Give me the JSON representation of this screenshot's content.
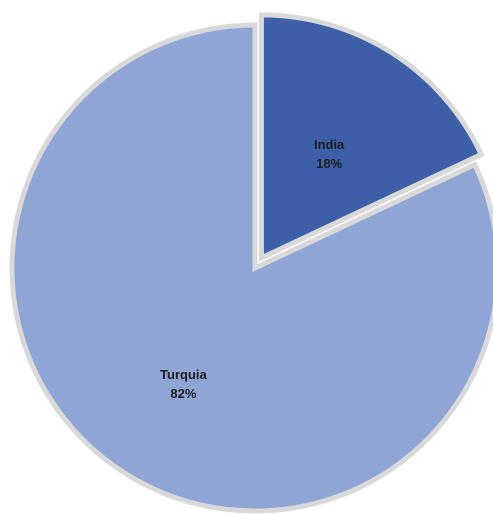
{
  "chart_data": {
    "type": "pie",
    "title": "",
    "slices": [
      {
        "name": "India",
        "value": 18,
        "label": "18%",
        "color": "#3c5fa8",
        "exploded": true
      },
      {
        "name": "Turquia",
        "value": 82,
        "label": "82%",
        "color": "#8ea5d6",
        "exploded": false
      }
    ],
    "start_angle": "top (12 o'clock), clockwise",
    "legend": "none",
    "background": "#ffffff"
  }
}
